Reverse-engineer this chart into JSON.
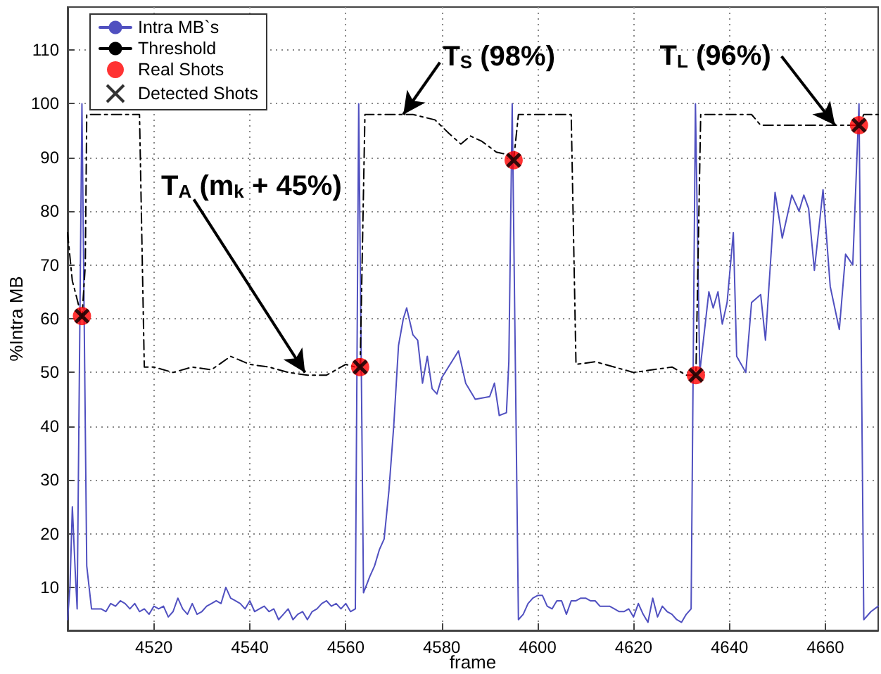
{
  "chart_data": {
    "type": "line",
    "xlabel": "frame",
    "ylabel": "%Intra MB",
    "xlim": [
      4502,
      4671
    ],
    "ylim": [
      2,
      118
    ],
    "xticks": [
      4520,
      4540,
      4560,
      4580,
      4600,
      4620,
      4640,
      4660
    ],
    "yticks": [
      10,
      20,
      30,
      40,
      50,
      60,
      70,
      80,
      90,
      100,
      110
    ],
    "grid": true,
    "legend": "top left",
    "series": [
      {
        "name": "Intra MB`s",
        "color": "#5050c0",
        "marker": "none",
        "line_style": "solid",
        "x": [
          4502,
          4502.5,
          4503,
          4503.6,
          4504,
          4505,
          4506,
          4507,
          4508,
          4509,
          4510,
          4511,
          4512,
          4513,
          4514,
          4515,
          4516,
          4517,
          4518,
          4519,
          4520,
          4521,
          4522,
          4523,
          4524,
          4525,
          4526,
          4527,
          4528,
          4529,
          4530,
          4531,
          4532,
          4533,
          4534,
          4535,
          4536,
          4537,
          4538,
          4539,
          4540,
          4541,
          4542,
          4543,
          4544,
          4545,
          4546,
          4547,
          4548,
          4549,
          4550,
          4551,
          4552,
          4553,
          4554,
          4555,
          4556,
          4557,
          4558,
          4559,
          4560,
          4561,
          4562,
          4562.7,
          4563.7,
          4565,
          4566,
          4567,
          4568,
          4569,
          4570,
          4571,
          4572,
          4572.7,
          4574,
          4575,
          4576,
          4577,
          4578,
          4579,
          4580,
          4583.5,
          4585,
          4587,
          4590,
          4591,
          4592,
          4593.5,
          4594,
          4594.7,
          4596,
          4597,
          4598,
          4599,
          4600,
          4601,
          4602,
          4603,
          4604,
          4605,
          4606,
          4607,
          4608,
          4609,
          4610,
          4611,
          4612,
          4613,
          4614,
          4615,
          4616,
          4617,
          4618,
          4619,
          4620,
          4621,
          4622,
          4623,
          4624,
          4625,
          4626,
          4627,
          4628,
          4629,
          4630,
          4631,
          4632,
          4632.9,
          4633.8,
          4635.7,
          4636.6,
          4637.6,
          4638.5,
          4639.5,
          4640.8,
          4641.5,
          4643.4,
          4644.6,
          4646.5,
          4647.5,
          4649.5,
          4651,
          4653,
          4654.5,
          4655.5,
          4656.5,
          4657.7,
          4659.5,
          4661,
          4662.9,
          4664.2,
          4665.7,
          4667,
          4667.7,
          4668,
          4669.5,
          4671
        ],
        "values": [
          4,
          10,
          25,
          13,
          6,
          100,
          14,
          6,
          6,
          6,
          5.5,
          7,
          6.5,
          7.5,
          7,
          6,
          7,
          5.5,
          6,
          5,
          6.5,
          6,
          6.5,
          4.5,
          5.5,
          8,
          6,
          5,
          7,
          5,
          5.5,
          6.5,
          7,
          7.5,
          7,
          10,
          8,
          7.5,
          7,
          6,
          7.5,
          5.5,
          6,
          6.5,
          5.5,
          6,
          4,
          5,
          6,
          4,
          5,
          5.5,
          4,
          5.5,
          6,
          7,
          7.5,
          6.5,
          7,
          6,
          7,
          5.5,
          6,
          100,
          9,
          12,
          14,
          17,
          19,
          28,
          40,
          55,
          60,
          62,
          57,
          56,
          48,
          53,
          47,
          46,
          49,
          54,
          48,
          45,
          45.5,
          48,
          42,
          42.5,
          52,
          100,
          4,
          5,
          7,
          8,
          8.5,
          8.5,
          6.5,
          6,
          7.5,
          7.5,
          5,
          7.5,
          7.5,
          8,
          8,
          7.5,
          7.5,
          6.5,
          6.5,
          6.5,
          6,
          5.5,
          5.5,
          6,
          4.5,
          7,
          5,
          3.5,
          8,
          4.5,
          6.5,
          5.5,
          5,
          4,
          3.5,
          5,
          6,
          100,
          50,
          65,
          62,
          65,
          59,
          63,
          76,
          53,
          50,
          63,
          64.5,
          56,
          83.5,
          75,
          83,
          80,
          83,
          80.5,
          69,
          84,
          66,
          58,
          72,
          70,
          100,
          33,
          4,
          5.5,
          6.5
        ]
      },
      {
        "name": "Threshold",
        "color": "#000000",
        "marker": "none",
        "line_style": "dashed",
        "x": [
          4502,
          4503,
          4503.6,
          4505,
          4505.7,
          4506,
          4517,
          4518,
          4520,
          4524,
          4528,
          4532,
          4536,
          4540,
          4544,
          4548,
          4552,
          4556,
          4560,
          4562,
          4563,
          4564,
          4574,
          4578.6,
          4581.5,
          4584,
          4586,
          4588.4,
          4591.4,
          4593.9,
          4595,
          4596,
          4607,
          4608,
          4612,
          4616,
          4620,
          4624,
          4628,
          4631,
          4633,
          4634,
          4644.6,
          4646.5,
          4667,
          4668,
          4671
        ],
        "values": [
          76,
          67,
          65,
          60,
          70,
          98,
          98,
          51,
          51,
          50,
          51,
          50.5,
          53,
          51.5,
          51,
          50,
          49.5,
          49.5,
          51.5,
          51,
          51,
          98,
          98,
          97,
          94.5,
          92.5,
          94,
          93,
          91,
          90.5,
          89.5,
          98,
          98,
          51.5,
          52,
          51,
          50,
          50.5,
          51,
          49.5,
          49.5,
          98,
          98,
          96,
          96,
          98,
          98
        ]
      },
      {
        "name": "Real Shots",
        "type": "scatter",
        "color": "#ff0000",
        "marker": "circle",
        "x": [
          4505,
          4563,
          4595,
          4633,
          4667
        ],
        "values": [
          60.5,
          51,
          89.5,
          49.5,
          96
        ]
      },
      {
        "name": "Detected Shots",
        "type": "scatter",
        "color": "#000000",
        "marker": "cross",
        "x": [
          4505,
          4563,
          4595,
          4633,
          4667
        ],
        "values": [
          60.5,
          51,
          89.5,
          49.5,
          96
        ]
      }
    ],
    "annotations": [
      {
        "text": "T$_{A}$ (m$_{k}$ + 45%)",
        "x": 4551.5,
        "y": 50
      },
      {
        "text": "T$_{S}$ (98%)",
        "x": 4572,
        "y": 98
      },
      {
        "text": "T$_{L}$ (96%)",
        "x": 4662,
        "y": 96
      }
    ]
  }
}
